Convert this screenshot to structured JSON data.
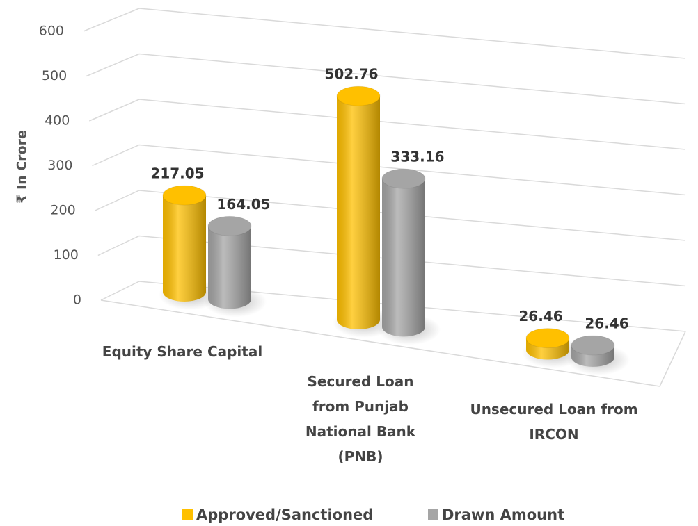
{
  "chart_data": {
    "type": "bar3d",
    "ylabel": "₹ In Crore",
    "categories": [
      "Equity Share Capital",
      "Secured Loan from Punjab National Bank (PNB)",
      "Unsecured Loan from IRCON"
    ],
    "series": [
      {
        "name": "Approved/Sanctioned",
        "color": "#FFC000",
        "values": [
          217.05,
          502.76,
          26.46
        ]
      },
      {
        "name": "Drawn Amount",
        "color": "#A5A5A5",
        "values": [
          164.05,
          333.16,
          26.46
        ]
      }
    ],
    "ylim": [
      0,
      600
    ],
    "yticks": [
      0,
      100,
      200,
      300,
      400,
      500,
      600
    ],
    "grid": true,
    "legend": "bottom"
  }
}
